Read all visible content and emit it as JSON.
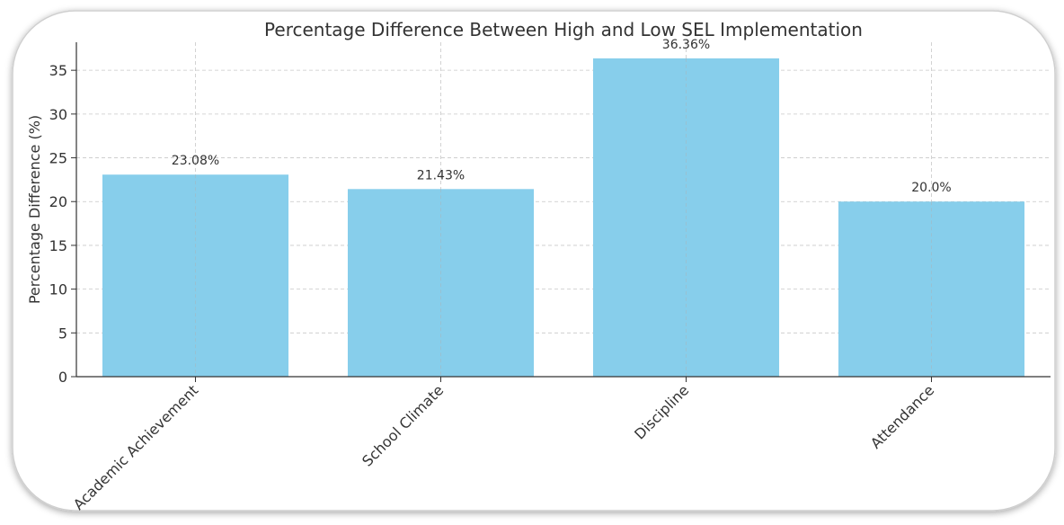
{
  "chart_data": {
    "type": "bar",
    "title": "Percentage Difference Between High and Low SEL Implementation",
    "xlabel": "",
    "ylabel": "Percentage Difference (%)",
    "categories": [
      "Academic Achievement",
      "School Climate",
      "Discipline",
      "Attendance"
    ],
    "values": [
      23.08,
      21.43,
      36.36,
      20.0
    ],
    "value_labels": [
      "23.08%",
      "21.43%",
      "36.36%",
      "20.0%"
    ],
    "ylim": [
      0,
      38.2
    ],
    "yticks": [
      0,
      5,
      10,
      15,
      20,
      25,
      30,
      35
    ],
    "ytick_labels": [
      "0",
      "5",
      "10",
      "15",
      "20",
      "25",
      "30",
      "35"
    ],
    "grid": true,
    "bar_color": "#87CEEB"
  }
}
